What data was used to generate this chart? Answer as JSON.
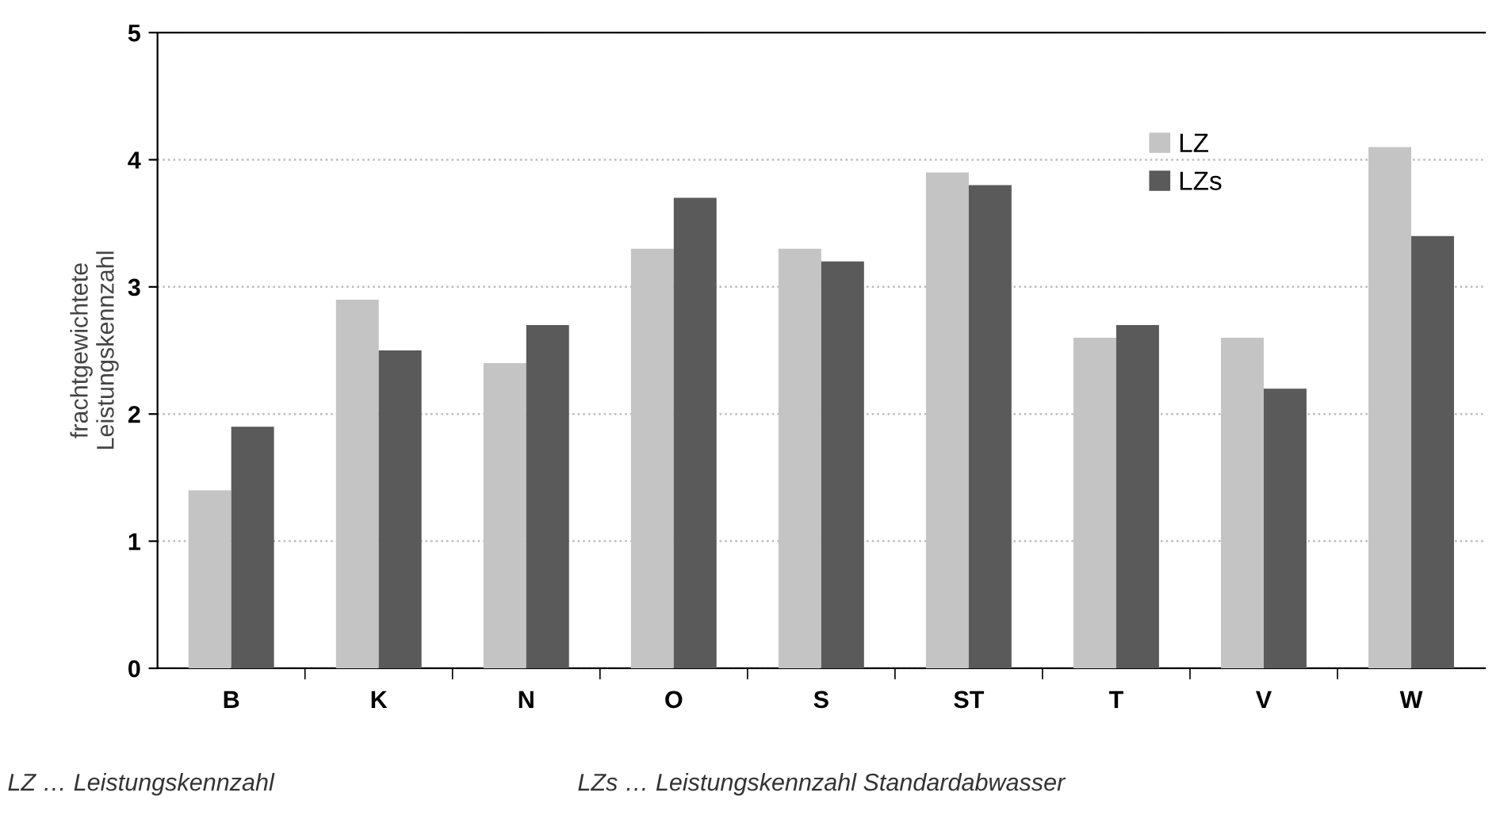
{
  "chart_data": {
    "type": "bar",
    "ylabel": "frachtgewichtete\nLeistungskennzahl",
    "categories": [
      "B",
      "K",
      "N",
      "O",
      "S",
      "ST",
      "T",
      "V",
      "W"
    ],
    "series": [
      {
        "name": "LZ",
        "color": "#c4c4c4",
        "values": [
          1.4,
          2.9,
          2.4,
          3.3,
          3.3,
          3.9,
          2.6,
          2.6,
          4.1
        ]
      },
      {
        "name": "LZs",
        "color": "#5a5a5a",
        "values": [
          1.9,
          2.5,
          2.7,
          3.7,
          3.2,
          3.8,
          2.7,
          2.2,
          3.4
        ]
      }
    ],
    "ylim": [
      0,
      5
    ],
    "yticks": [
      0,
      1,
      2,
      3,
      4,
      5
    ],
    "grid": "y",
    "legend": "top right",
    "annotations": [
      "LZ … Leistungskennzahl",
      "LZs … Leistungskennzahl Standardabwasser"
    ]
  }
}
